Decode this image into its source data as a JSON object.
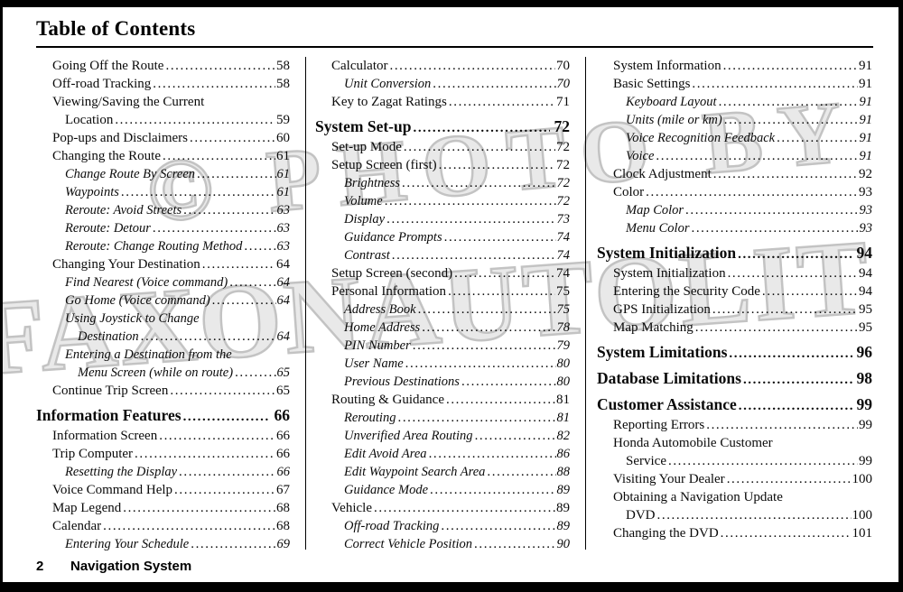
{
  "page": {
    "title": "Table of Contents",
    "watermark": {
      "line1": "© PHOTO BY",
      "line2": "FAXONAUTOLIT",
      "fill_color": "#e9e9e9",
      "outline_color": "#c3c3c3"
    },
    "footer": {
      "page_number": "2",
      "label": "Navigation System"
    },
    "text_color": "#000000",
    "background_color": "#ffffff"
  },
  "columns": [
    {
      "entries": [
        {
          "style": "main",
          "text": "Going Off the Route",
          "page": "58"
        },
        {
          "style": "main",
          "text": "Off-road Tracking",
          "page": "58"
        },
        {
          "style": "main",
          "text": "Viewing/Saving the Current"
        },
        {
          "style": "main-cont",
          "text": "Location",
          "page": "59"
        },
        {
          "style": "main",
          "text": "Pop-ups and Disclaimers",
          "page": "60"
        },
        {
          "style": "main",
          "text": "Changing the Route",
          "page": "61"
        },
        {
          "style": "sub",
          "text": "Change Route By Screen",
          "page": "61"
        },
        {
          "style": "sub",
          "text": "Waypoints",
          "page": "61"
        },
        {
          "style": "sub",
          "text": "Reroute: Avoid Streets",
          "page": "63"
        },
        {
          "style": "sub",
          "text": "Reroute: Detour",
          "page": "63"
        },
        {
          "style": "sub",
          "text": "Reroute: Change Routing Method",
          "page": "63"
        },
        {
          "style": "main",
          "text": "Changing Your Destination",
          "page": "64"
        },
        {
          "style": "sub",
          "text": "Find Nearest (Voice command)",
          "page": "64"
        },
        {
          "style": "sub",
          "text": "Go Home (Voice command)",
          "page": "64"
        },
        {
          "style": "sub",
          "text": "Using Joystick to Change"
        },
        {
          "style": "sub-cont",
          "text": "Destination",
          "page": "64"
        },
        {
          "style": "sub",
          "text": "Entering a Destination from the"
        },
        {
          "style": "sub-cont",
          "text": "Menu Screen (while on route)",
          "page": "65"
        },
        {
          "style": "main",
          "text": "Continue Trip Screen",
          "page": "65"
        },
        {
          "style": "header",
          "text": "Information Features",
          "page": "66"
        },
        {
          "style": "main",
          "text": "Information Screen",
          "page": "66"
        },
        {
          "style": "main",
          "text": "Trip Computer",
          "page": "66"
        },
        {
          "style": "sub",
          "text": "Resetting the Display",
          "page": "66"
        },
        {
          "style": "main",
          "text": "Voice Command Help",
          "page": "67"
        },
        {
          "style": "main",
          "text": "Map Legend",
          "page": "68"
        },
        {
          "style": "main",
          "text": "Calendar",
          "page": "68"
        },
        {
          "style": "sub",
          "text": "Entering Your Schedule",
          "page": "69"
        }
      ]
    },
    {
      "entries": [
        {
          "style": "main",
          "text": "Calculator",
          "page": "70"
        },
        {
          "style": "sub",
          "text": "Unit Conversion",
          "page": "70"
        },
        {
          "style": "main",
          "text": "Key to Zagat Ratings",
          "page": "71"
        },
        {
          "style": "header",
          "text": "System Set-up",
          "page": "72"
        },
        {
          "style": "main",
          "text": "Set-up Mode",
          "page": "72"
        },
        {
          "style": "main",
          "text": "Setup Screen (first)",
          "page": "72"
        },
        {
          "style": "sub",
          "text": "Brightness",
          "page": "72"
        },
        {
          "style": "sub",
          "text": "Volume",
          "page": "72"
        },
        {
          "style": "sub",
          "text": "Display",
          "page": "73"
        },
        {
          "style": "sub",
          "text": "Guidance Prompts",
          "page": "74"
        },
        {
          "style": "sub",
          "text": "Contrast",
          "page": "74"
        },
        {
          "style": "main",
          "text": "Setup Screen (second)",
          "page": "74"
        },
        {
          "style": "main",
          "text": "Personal Information",
          "page": "75"
        },
        {
          "style": "sub",
          "text": "Address Book",
          "page": "75"
        },
        {
          "style": "sub",
          "text": "Home Address",
          "page": "78"
        },
        {
          "style": "sub",
          "text": "PIN Number",
          "page": "79"
        },
        {
          "style": "sub",
          "text": "User Name",
          "page": "80"
        },
        {
          "style": "sub",
          "text": "Previous Destinations",
          "page": "80"
        },
        {
          "style": "main",
          "text": "Routing & Guidance",
          "page": "81"
        },
        {
          "style": "sub",
          "text": "Rerouting",
          "page": "81"
        },
        {
          "style": "sub",
          "text": "Unverified Area Routing",
          "page": "82"
        },
        {
          "style": "sub",
          "text": "Edit Avoid Area",
          "page": "86"
        },
        {
          "style": "sub",
          "text": "Edit Waypoint Search Area",
          "page": "88"
        },
        {
          "style": "sub",
          "text": "Guidance Mode",
          "page": "89"
        },
        {
          "style": "main",
          "text": "Vehicle",
          "page": "89"
        },
        {
          "style": "sub",
          "text": "Off-road Tracking",
          "page": "89"
        },
        {
          "style": "sub",
          "text": "Correct Vehicle Position",
          "page": "90"
        }
      ]
    },
    {
      "entries": [
        {
          "style": "main",
          "text": "System Information",
          "page": "91"
        },
        {
          "style": "main",
          "text": "Basic Settings",
          "page": "91"
        },
        {
          "style": "sub",
          "text": "Keyboard Layout",
          "page": "91"
        },
        {
          "style": "sub",
          "text": "Units (mile or km)",
          "page": "91"
        },
        {
          "style": "sub",
          "text": "Voice Recognition Feedback",
          "page": "91"
        },
        {
          "style": "sub",
          "text": "Voice",
          "page": "91"
        },
        {
          "style": "main",
          "text": "Clock Adjustment",
          "page": "92"
        },
        {
          "style": "main",
          "text": "Color",
          "page": "93"
        },
        {
          "style": "sub",
          "text": "Map Color",
          "page": "93"
        },
        {
          "style": "sub",
          "text": "Menu Color",
          "page": "93"
        },
        {
          "style": "header",
          "text": "System Initialization",
          "page": "94"
        },
        {
          "style": "main",
          "text": "System Initialization",
          "page": "94"
        },
        {
          "style": "main",
          "text": "Entering the Security Code",
          "page": "94"
        },
        {
          "style": "main",
          "text": "GPS Initialization",
          "page": "95"
        },
        {
          "style": "main",
          "text": "Map Matching",
          "page": "95"
        },
        {
          "style": "header",
          "text": "System Limitations",
          "page": "96"
        },
        {
          "style": "header",
          "text": "Database Limitations",
          "page": "98"
        },
        {
          "style": "header",
          "text": "Customer Assistance",
          "page": "99"
        },
        {
          "style": "main",
          "text": "Reporting Errors",
          "page": "99"
        },
        {
          "style": "main",
          "text": "Honda Automobile Customer"
        },
        {
          "style": "main-cont",
          "text": "Service",
          "page": "99"
        },
        {
          "style": "main",
          "text": "Visiting Your Dealer",
          "page": "100"
        },
        {
          "style": "main",
          "text": "Obtaining a Navigation Update"
        },
        {
          "style": "main-cont",
          "text": "DVD",
          "page": "100"
        },
        {
          "style": "main",
          "text": "Changing the DVD",
          "page": "101"
        }
      ]
    }
  ]
}
